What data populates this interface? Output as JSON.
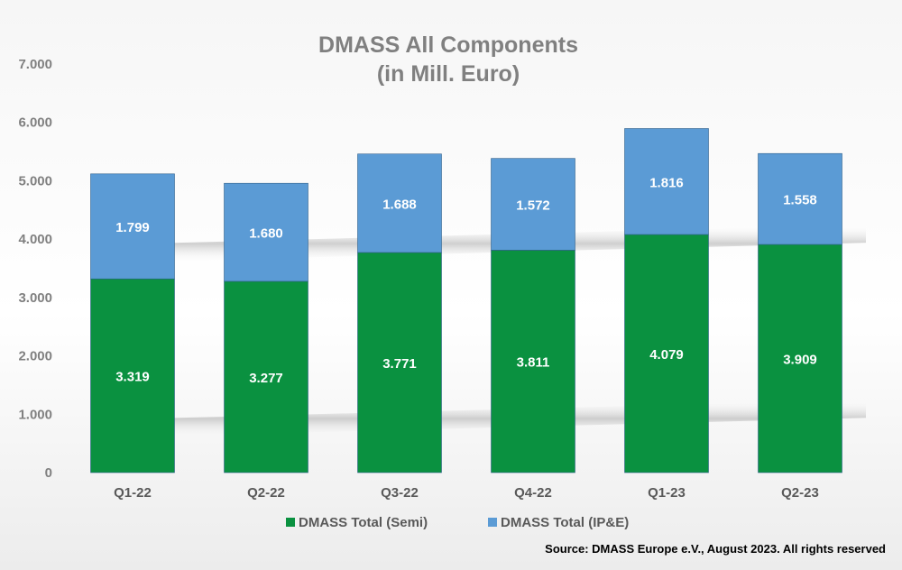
{
  "chart_data": {
    "type": "bar",
    "stacked": true,
    "title": [
      "DMASS All Components",
      "(in Mill. Euro)"
    ],
    "categories": [
      "Q1-22",
      "Q2-22",
      "Q3-22",
      "Q4-22",
      "Q1-23",
      "Q2-23"
    ],
    "series": [
      {
        "name": "DMASS Total (Semi)",
        "color": "#0a9140",
        "values": [
          3319,
          3277,
          3771,
          3811,
          4079,
          3909
        ],
        "labels": [
          "3.319",
          "3.277",
          "3.771",
          "3.811",
          "4.079",
          "3.909"
        ]
      },
      {
        "name": "DMASS Total (IP&E)",
        "color": "#5b9bd5",
        "values": [
          1799,
          1680,
          1688,
          1572,
          1816,
          1558
        ],
        "labels": [
          "1.799",
          "1.680",
          "1.688",
          "1.572",
          "1.816",
          "1.558"
        ]
      }
    ],
    "ylim": [
      0,
      7000
    ],
    "yticks": [
      0,
      1000,
      2000,
      3000,
      4000,
      5000,
      6000,
      7000
    ],
    "ytick_labels": [
      "0",
      "1.000",
      "2.000",
      "3.000",
      "4.000",
      "5.000",
      "6.000",
      "7.000"
    ],
    "gridlines": false,
    "legend_position": "bottom",
    "source": "Source: DMASS Europe e.V., August 2023. All rights reserved",
    "background": "gradient gray with 3D-perspective shadow bands"
  }
}
